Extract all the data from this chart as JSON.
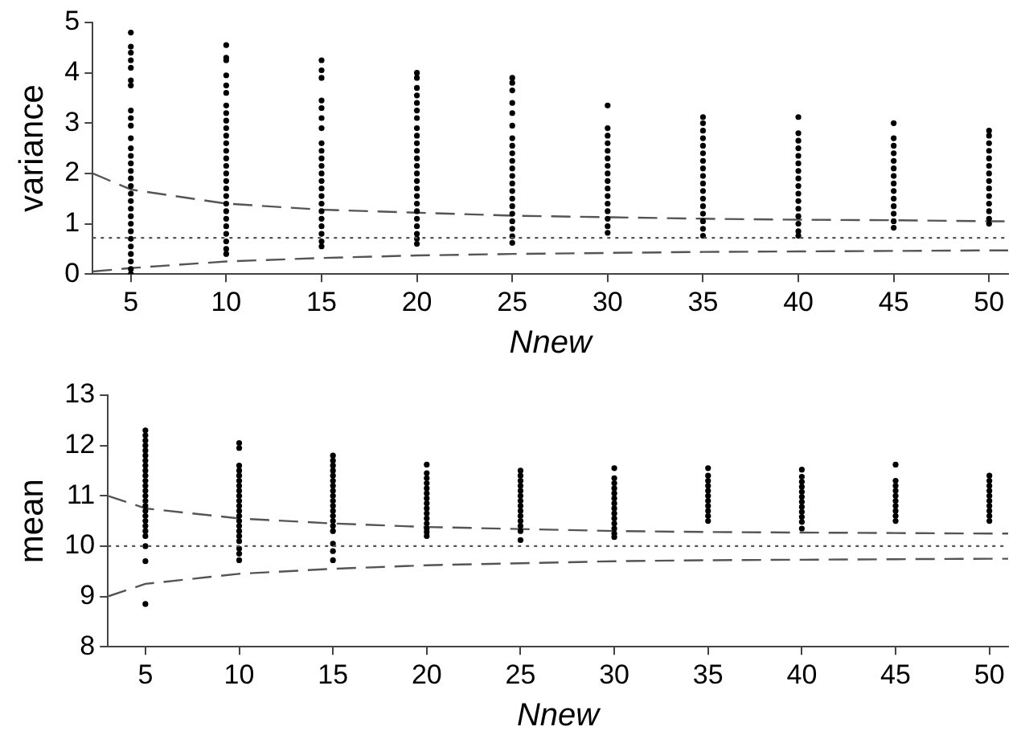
{
  "chart_data": [
    {
      "type": "scatter",
      "xlabel": "Nnew",
      "ylabel": "variance",
      "xlim": [
        3,
        51
      ],
      "xticks": [
        5,
        10,
        15,
        20,
        25,
        30,
        35,
        40,
        45,
        50
      ],
      "ylim": [
        0,
        5
      ],
      "yticks": [
        0,
        1,
        2,
        3,
        4,
        5
      ],
      "grid": false,
      "legend": false,
      "marker": "circle",
      "ref_lines": [
        {
          "axis": "y",
          "value": 0.72,
          "color": "#555555",
          "line_style": "dotted"
        }
      ],
      "series": [
        {
          "color": "#000000",
          "x": [
            5,
            5,
            5,
            5,
            5,
            5,
            5,
            5,
            5,
            5,
            5,
            5,
            5,
            5,
            5,
            5,
            5,
            5,
            5,
            5,
            5,
            5,
            5,
            5,
            5,
            5,
            5,
            5,
            5
          ],
          "values": [
            4.8,
            4.52,
            4.4,
            4.25,
            4.1,
            3.85,
            3.75,
            3.25,
            3.1,
            2.95,
            2.7,
            2.5,
            2.35,
            2.2,
            2.05,
            1.9,
            1.75,
            1.6,
            1.45,
            1.3,
            1.15,
            1.0,
            0.85,
            0.7,
            0.55,
            0.4,
            0.25,
            0.1,
            0.0
          ]
        },
        {
          "color": "#000000",
          "x": [
            10,
            10,
            10,
            10,
            10,
            10,
            10,
            10,
            10,
            10,
            10,
            10,
            10,
            10,
            10,
            10,
            10,
            10,
            10,
            10,
            10,
            10,
            10,
            10,
            10,
            10,
            10
          ],
          "values": [
            4.55,
            4.3,
            4.25,
            3.95,
            3.75,
            3.6,
            3.35,
            3.2,
            3.05,
            2.9,
            2.75,
            2.6,
            2.45,
            2.3,
            2.15,
            2.0,
            1.85,
            1.7,
            1.55,
            1.4,
            1.25,
            1.1,
            0.95,
            0.8,
            0.65,
            0.5,
            0.4
          ]
        },
        {
          "color": "#000000",
          "x": [
            15,
            15,
            15,
            15,
            15,
            15,
            15,
            15,
            15,
            15,
            15,
            15,
            15,
            15,
            15,
            15,
            15,
            15,
            15,
            15,
            15,
            15
          ],
          "values": [
            4.25,
            4.05,
            3.9,
            3.45,
            3.3,
            3.1,
            2.9,
            2.6,
            2.45,
            2.3,
            2.15,
            2.0,
            1.85,
            1.7,
            1.55,
            1.4,
            1.25,
            1.1,
            0.95,
            0.8,
            0.65,
            0.55
          ]
        },
        {
          "color": "#000000",
          "x": [
            20,
            20,
            20,
            20,
            20,
            20,
            20,
            20,
            20,
            20,
            20,
            20,
            20,
            20,
            20,
            20,
            20,
            20,
            20,
            20,
            20,
            20,
            20,
            20
          ],
          "values": [
            4.0,
            3.9,
            3.7,
            3.55,
            3.4,
            3.25,
            3.1,
            2.9,
            2.75,
            2.6,
            2.45,
            2.3,
            2.15,
            2.0,
            1.85,
            1.7,
            1.55,
            1.4,
            1.25,
            1.1,
            0.95,
            0.8,
            0.7,
            0.6
          ]
        },
        {
          "color": "#000000",
          "x": [
            25,
            25,
            25,
            25,
            25,
            25,
            25,
            25,
            25,
            25,
            25,
            25,
            25,
            25,
            25,
            25,
            25,
            25,
            25,
            25,
            25
          ],
          "values": [
            3.9,
            3.8,
            3.65,
            3.4,
            3.2,
            2.95,
            2.7,
            2.55,
            2.4,
            2.25,
            2.1,
            1.95,
            1.8,
            1.65,
            1.5,
            1.35,
            1.2,
            1.05,
            0.9,
            0.75,
            0.62
          ]
        },
        {
          "color": "#000000",
          "x": [
            30,
            30,
            30,
            30,
            30,
            30,
            30,
            30,
            30,
            30,
            30,
            30,
            30,
            30,
            30,
            30
          ],
          "values": [
            3.35,
            2.9,
            2.75,
            2.6,
            2.45,
            2.3,
            2.15,
            2.0,
            1.85,
            1.7,
            1.55,
            1.4,
            1.25,
            1.1,
            0.95,
            0.82
          ]
        },
        {
          "color": "#000000",
          "x": [
            35,
            35,
            35,
            35,
            35,
            35,
            35,
            35,
            35,
            35,
            35,
            35,
            35,
            35,
            35,
            35,
            35
          ],
          "values": [
            3.12,
            3.0,
            2.85,
            2.7,
            2.55,
            2.4,
            2.25,
            2.1,
            1.95,
            1.8,
            1.65,
            1.5,
            1.35,
            1.2,
            1.05,
            0.9,
            0.76
          ]
        },
        {
          "color": "#000000",
          "x": [
            40,
            40,
            40,
            40,
            40,
            40,
            40,
            40,
            40,
            40,
            40,
            40,
            40,
            40,
            40,
            40
          ],
          "values": [
            3.12,
            2.8,
            2.65,
            2.5,
            2.35,
            2.2,
            2.05,
            1.9,
            1.75,
            1.6,
            1.45,
            1.3,
            1.15,
            1.0,
            0.85,
            0.76
          ]
        },
        {
          "color": "#000000",
          "x": [
            45,
            45,
            45,
            45,
            45,
            45,
            45,
            45,
            45,
            45,
            45,
            45,
            45,
            45
          ],
          "values": [
            3.0,
            2.7,
            2.55,
            2.4,
            2.25,
            2.1,
            1.95,
            1.8,
            1.65,
            1.5,
            1.35,
            1.2,
            1.05,
            0.92
          ]
        },
        {
          "color": "#000000",
          "x": [
            50,
            50,
            50,
            50,
            50,
            50,
            50,
            50,
            50,
            50,
            50,
            50,
            50,
            50
          ],
          "values": [
            2.85,
            2.75,
            2.6,
            2.45,
            2.3,
            2.15,
            2.0,
            1.85,
            1.7,
            1.55,
            1.4,
            1.25,
            1.1,
            1.0
          ]
        },
        {
          "type": "line",
          "color": "#555555",
          "line_style": "dashed",
          "marker": "none",
          "x": [
            3,
            5,
            10,
            15,
            20,
            25,
            30,
            35,
            40,
            45,
            50,
            51
          ],
          "values": [
            2.0,
            1.68,
            1.4,
            1.28,
            1.22,
            1.16,
            1.13,
            1.1,
            1.08,
            1.07,
            1.05,
            1.05
          ]
        },
        {
          "type": "line",
          "color": "#555555",
          "line_style": "dashed",
          "marker": "none",
          "x": [
            3,
            5,
            10,
            15,
            20,
            25,
            30,
            35,
            40,
            45,
            50,
            51
          ],
          "values": [
            0.05,
            0.12,
            0.25,
            0.32,
            0.37,
            0.4,
            0.42,
            0.44,
            0.45,
            0.46,
            0.47,
            0.47
          ]
        }
      ]
    },
    {
      "type": "scatter",
      "xlabel": "Nnew",
      "ylabel": "mean",
      "xlim": [
        3,
        51
      ],
      "xticks": [
        5,
        10,
        15,
        20,
        25,
        30,
        35,
        40,
        45,
        50
      ],
      "ylim": [
        8,
        13
      ],
      "yticks": [
        8,
        9,
        10,
        11,
        12,
        13
      ],
      "grid": false,
      "legend": false,
      "marker": "circle",
      "ref_lines": [
        {
          "axis": "y",
          "value": 10,
          "color": "#555555",
          "line_style": "dotted"
        }
      ],
      "series": [
        {
          "color": "#000000",
          "x": [
            5,
            5,
            5,
            5,
            5,
            5,
            5,
            5,
            5,
            5,
            5,
            5,
            5,
            5,
            5,
            5,
            5,
            5,
            5,
            5,
            5,
            5,
            5,
            5,
            5
          ],
          "values": [
            12.3,
            12.2,
            12.1,
            12.0,
            11.9,
            11.8,
            11.7,
            11.6,
            11.5,
            11.4,
            11.3,
            11.2,
            11.1,
            11.0,
            10.9,
            10.8,
            10.7,
            10.6,
            10.5,
            10.4,
            10.3,
            10.2,
            10.0,
            9.7,
            8.85
          ]
        },
        {
          "color": "#000000",
          "x": [
            10,
            10,
            10,
            10,
            10,
            10,
            10,
            10,
            10,
            10,
            10,
            10,
            10,
            10,
            10,
            10,
            10,
            10,
            10,
            10,
            10
          ],
          "values": [
            12.05,
            11.95,
            11.6,
            11.5,
            11.4,
            11.3,
            11.2,
            11.1,
            11.0,
            10.9,
            10.8,
            10.7,
            10.6,
            10.5,
            10.4,
            10.3,
            10.2,
            10.1,
            9.95,
            9.85,
            9.72
          ]
        },
        {
          "color": "#000000",
          "x": [
            15,
            15,
            15,
            15,
            15,
            15,
            15,
            15,
            15,
            15,
            15,
            15,
            15,
            15,
            15,
            15,
            15,
            15,
            15
          ],
          "values": [
            11.8,
            11.7,
            11.6,
            11.5,
            11.4,
            11.3,
            11.2,
            11.1,
            11.0,
            10.9,
            10.8,
            10.7,
            10.6,
            10.5,
            10.4,
            10.3,
            10.05,
            9.9,
            9.72
          ]
        },
        {
          "color": "#000000",
          "x": [
            20,
            20,
            20,
            20,
            20,
            20,
            20,
            20,
            20,
            20,
            20,
            20,
            20,
            20,
            20
          ],
          "values": [
            11.62,
            11.45,
            11.35,
            11.25,
            11.15,
            11.05,
            10.95,
            10.85,
            10.75,
            10.65,
            10.55,
            10.45,
            10.35,
            10.28,
            10.2
          ]
        },
        {
          "color": "#000000",
          "x": [
            25,
            25,
            25,
            25,
            25,
            25,
            25,
            25,
            25,
            25,
            25,
            25,
            25,
            25
          ],
          "values": [
            11.5,
            11.4,
            11.3,
            11.2,
            11.1,
            11.0,
            10.9,
            10.8,
            10.7,
            10.6,
            10.5,
            10.4,
            10.3,
            10.12
          ]
        },
        {
          "color": "#000000",
          "x": [
            30,
            30,
            30,
            30,
            30,
            30,
            30,
            30,
            30,
            30,
            30,
            30,
            30,
            30
          ],
          "values": [
            11.55,
            11.35,
            11.25,
            11.15,
            11.05,
            10.95,
            10.85,
            10.75,
            10.65,
            10.55,
            10.45,
            10.35,
            10.25,
            10.18
          ]
        },
        {
          "color": "#000000",
          "x": [
            35,
            35,
            35,
            35,
            35,
            35,
            35,
            35,
            35,
            35,
            35
          ],
          "values": [
            11.55,
            11.4,
            11.3,
            11.2,
            11.1,
            11.0,
            10.9,
            10.8,
            10.7,
            10.6,
            10.5
          ]
        },
        {
          "color": "#000000",
          "x": [
            40,
            40,
            40,
            40,
            40,
            40,
            40,
            40,
            40,
            40,
            40,
            40
          ],
          "values": [
            11.52,
            11.38,
            11.28,
            11.18,
            11.08,
            10.98,
            10.88,
            10.78,
            10.68,
            10.58,
            10.48,
            10.35
          ]
        },
        {
          "color": "#000000",
          "x": [
            45,
            45,
            45,
            45,
            45,
            45,
            45,
            45,
            45,
            45
          ],
          "values": [
            11.62,
            11.3,
            11.2,
            11.1,
            11.0,
            10.9,
            10.8,
            10.7,
            10.6,
            10.5
          ]
        },
        {
          "color": "#000000",
          "x": [
            50,
            50,
            50,
            50,
            50,
            50,
            50,
            50,
            50,
            50
          ],
          "values": [
            11.4,
            11.3,
            11.2,
            11.1,
            11.0,
            10.9,
            10.8,
            10.7,
            10.6,
            10.5
          ]
        },
        {
          "type": "line",
          "color": "#555555",
          "line_style": "dashed",
          "marker": "none",
          "x": [
            3,
            5,
            10,
            15,
            20,
            25,
            30,
            35,
            40,
            45,
            50,
            51
          ],
          "values": [
            11.0,
            10.75,
            10.55,
            10.45,
            10.38,
            10.34,
            10.3,
            10.28,
            10.27,
            10.26,
            10.25,
            10.25
          ]
        },
        {
          "type": "line",
          "color": "#555555",
          "line_style": "dashed",
          "marker": "none",
          "x": [
            3,
            5,
            10,
            15,
            20,
            25,
            30,
            35,
            40,
            45,
            50,
            51
          ],
          "values": [
            9.0,
            9.25,
            9.45,
            9.55,
            9.62,
            9.66,
            9.7,
            9.72,
            9.73,
            9.74,
            9.75,
            9.75
          ]
        }
      ]
    }
  ]
}
